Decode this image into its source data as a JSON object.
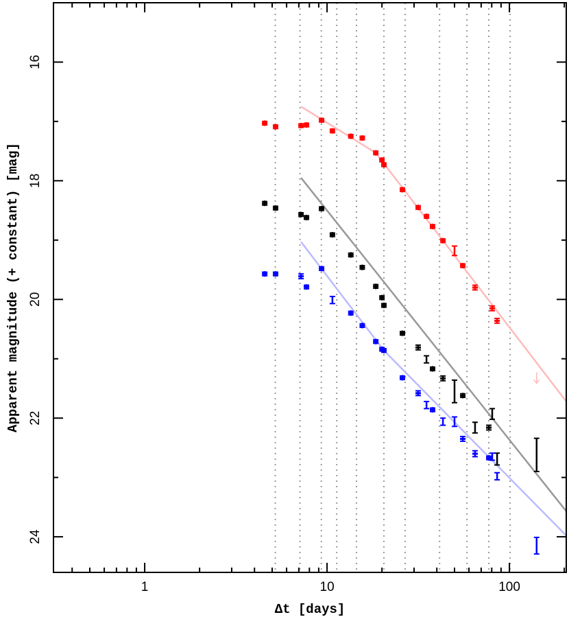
{
  "chart_data": {
    "type": "scatter",
    "title": "",
    "xlabel": "Δt [days]",
    "ylabel": "Apparent magnitude (+ constant) [mag]",
    "xscale": "log",
    "xlim": [
      0.316,
      205
    ],
    "ylim": [
      24.6,
      15.0
    ],
    "y_inverted": true,
    "x_ticks": [
      1,
      10,
      100
    ],
    "x_tick_labels": [
      "1",
      "10",
      "100"
    ],
    "y_ticks": [
      16,
      18,
      20,
      22,
      24
    ],
    "y_tick_labels": [
      "16",
      "18",
      "20",
      "22",
      "24"
    ],
    "grid": false,
    "vertical_reference_lines": [
      5.2,
      7.1,
      9.3,
      11.3,
      14.5,
      20.5,
      26.8,
      41.4,
      58.5,
      77.1,
      100.9
    ],
    "series": [
      {
        "color": "#ff0000",
        "points": [
          {
            "t": 4.55,
            "mag": 17.03,
            "err": 0.03
          },
          {
            "t": 5.22,
            "mag": 17.09,
            "err": 0.03
          },
          {
            "t": 7.2,
            "mag": 17.07,
            "err": 0.03
          },
          {
            "t": 7.71,
            "mag": 17.06,
            "err": 0.03
          },
          {
            "t": 9.33,
            "mag": 16.98,
            "err": 0.03
          },
          {
            "t": 10.7,
            "mag": 17.16,
            "err": 0.03
          },
          {
            "t": 13.5,
            "mag": 17.25,
            "err": 0.03
          },
          {
            "t": 15.6,
            "mag": 17.28,
            "err": 0.03
          },
          {
            "t": 18.5,
            "mag": 17.53,
            "err": 0.03
          },
          {
            "t": 20.0,
            "mag": 17.65,
            "err": 0.03
          },
          {
            "t": 20.5,
            "mag": 17.73,
            "err": 0.03
          },
          {
            "t": 25.9,
            "mag": 18.15,
            "err": 0.03
          },
          {
            "t": 31.6,
            "mag": 18.45,
            "err": 0.03
          },
          {
            "t": 35.1,
            "mag": 18.6,
            "err": 0.03
          },
          {
            "t": 37.9,
            "mag": 18.77,
            "err": 0.03
          },
          {
            "t": 43.2,
            "mag": 19.01,
            "err": 0.03
          },
          {
            "t": 50.0,
            "mag": 19.18,
            "err": 0.08
          },
          {
            "t": 55.5,
            "mag": 19.43,
            "err": 0.03
          },
          {
            "t": 64.8,
            "mag": 19.8,
            "err": 0.04
          },
          {
            "t": 80.5,
            "mag": 20.15,
            "err": 0.04
          },
          {
            "t": 85.6,
            "mag": 20.36,
            "err": 0.04
          }
        ],
        "upper_limits": [
          {
            "t": 141,
            "mag": 21.32,
            "color": "#ffbbbb"
          }
        ],
        "fit_line": {
          "color": "#ffbbbb",
          "points": [
            [
              7.2,
              16.75
            ],
            [
              18.5,
              17.53
            ],
            [
              205,
              21.72
            ]
          ]
        }
      },
      {
        "color": "#000000",
        "points": [
          {
            "t": 4.55,
            "mag": 18.38,
            "err": 0.03
          },
          {
            "t": 5.22,
            "mag": 18.46,
            "err": 0.03
          },
          {
            "t": 7.2,
            "mag": 18.57,
            "err": 0.03
          },
          {
            "t": 7.71,
            "mag": 18.62,
            "err": 0.03
          },
          {
            "t": 9.33,
            "mag": 18.47,
            "err": 0.03
          },
          {
            "t": 10.7,
            "mag": 18.91,
            "err": 0.03
          },
          {
            "t": 13.5,
            "mag": 19.25,
            "err": 0.03
          },
          {
            "t": 15.6,
            "mag": 19.46,
            "err": 0.03
          },
          {
            "t": 18.5,
            "mag": 19.78,
            "err": 0.03
          },
          {
            "t": 20.0,
            "mag": 19.97,
            "err": 0.03
          },
          {
            "t": 20.5,
            "mag": 20.1,
            "err": 0.03
          },
          {
            "t": 25.9,
            "mag": 20.57,
            "err": 0.03
          },
          {
            "t": 31.6,
            "mag": 20.81,
            "err": 0.04
          },
          {
            "t": 35.1,
            "mag": 21.01,
            "err": 0.06
          },
          {
            "t": 37.9,
            "mag": 21.17,
            "err": 0.03
          },
          {
            "t": 43.2,
            "mag": 21.33,
            "err": 0.04
          },
          {
            "t": 50.0,
            "mag": 21.55,
            "err": 0.19
          },
          {
            "t": 55.5,
            "mag": 21.62,
            "err": 0.03
          },
          {
            "t": 64.8,
            "mag": 22.16,
            "err": 0.09
          },
          {
            "t": 77.1,
            "mag": 22.16,
            "err": 0.04
          },
          {
            "t": 80.5,
            "mag": 21.93,
            "err": 0.09
          },
          {
            "t": 85.6,
            "mag": 22.69,
            "err": 0.1
          },
          {
            "t": 141,
            "mag": 22.62,
            "err": 0.28
          }
        ],
        "fit_line": {
          "color": "#999999",
          "points": [
            [
              7.2,
              17.95
            ],
            [
              205,
              23.57
            ]
          ]
        }
      },
      {
        "color": "#0000ff",
        "points": [
          {
            "t": 4.55,
            "mag": 19.57,
            "err": 0.03
          },
          {
            "t": 5.22,
            "mag": 19.57,
            "err": 0.03
          },
          {
            "t": 7.2,
            "mag": 19.61,
            "err": 0.04
          },
          {
            "t": 7.71,
            "mag": 19.79,
            "err": 0.03
          },
          {
            "t": 9.33,
            "mag": 19.48,
            "err": 0.03
          },
          {
            "t": 10.7,
            "mag": 20.01,
            "err": 0.06
          },
          {
            "t": 13.5,
            "mag": 20.23,
            "err": 0.03
          },
          {
            "t": 15.6,
            "mag": 20.44,
            "err": 0.03
          },
          {
            "t": 18.5,
            "mag": 20.71,
            "err": 0.03
          },
          {
            "t": 20.0,
            "mag": 20.84,
            "err": 0.03
          },
          {
            "t": 20.5,
            "mag": 20.86,
            "err": 0.03
          },
          {
            "t": 25.9,
            "mag": 21.32,
            "err": 0.03
          },
          {
            "t": 31.6,
            "mag": 21.58,
            "err": 0.04
          },
          {
            "t": 35.1,
            "mag": 21.78,
            "err": 0.06
          },
          {
            "t": 37.9,
            "mag": 21.86,
            "err": 0.03
          },
          {
            "t": 43.2,
            "mag": 22.06,
            "err": 0.06
          },
          {
            "t": 50.0,
            "mag": 22.06,
            "err": 0.08
          },
          {
            "t": 55.5,
            "mag": 22.35,
            "err": 0.04
          },
          {
            "t": 64.8,
            "mag": 22.6,
            "err": 0.05
          },
          {
            "t": 77.1,
            "mag": 22.67,
            "err": 0.03
          },
          {
            "t": 80.5,
            "mag": 22.65,
            "err": 0.06
          },
          {
            "t": 85.6,
            "mag": 22.98,
            "err": 0.06
          },
          {
            "t": 141,
            "mag": 24.15,
            "err": 0.14
          }
        ],
        "fit_line": {
          "color": "#bbbbff",
          "points": [
            [
              7.2,
              19.03
            ],
            [
              20.5,
              20.86
            ],
            [
              205,
              23.98
            ]
          ]
        }
      }
    ]
  }
}
